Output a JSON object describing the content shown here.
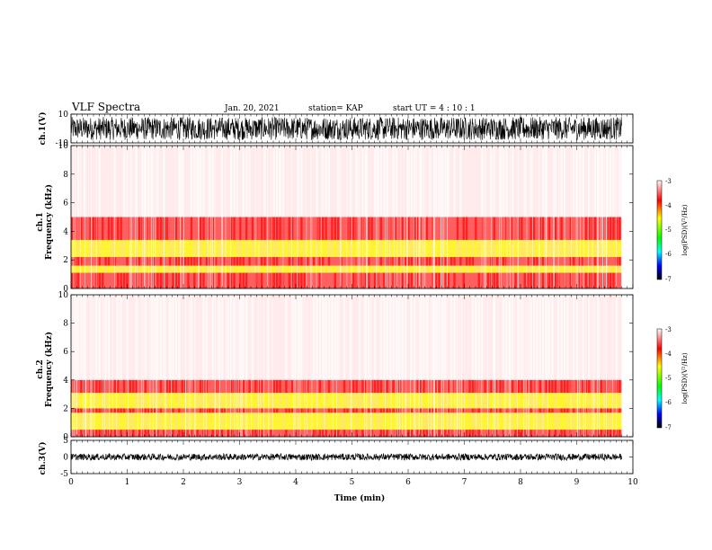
{
  "header": {
    "title": "VLF Spectra",
    "date": "Jan. 20, 2021",
    "station": "station= KAP",
    "start": "start  UT =   4 : 10 : 1"
  },
  "chart_data": [
    {
      "type": "line",
      "panel": "ch1-waveform",
      "ylabel": "ch.1(V)",
      "ylim": [
        -10,
        10
      ],
      "yticks": [
        "10",
        "-10"
      ],
      "description_values": {
        "amplitude_range": [
          -8,
          8
        ]
      }
    },
    {
      "type": "heatmap",
      "panel": "ch1-spectrogram",
      "ylabel": "ch.1\nFrequency  (kHz)",
      "ylabel_lines": [
        "ch.1",
        "Frequency  (kHz)"
      ],
      "ylim": [
        0,
        10
      ],
      "yticks": [
        "0",
        "2",
        "4",
        "6",
        "8",
        "10"
      ],
      "bands": [
        {
          "f_range": [
            0,
            1.1
          ],
          "level": -3.9
        },
        {
          "f_range": [
            1.1,
            1.6
          ],
          "level": -4.2
        },
        {
          "f_range": [
            1.6,
            2.2
          ],
          "level": -3.8
        },
        {
          "f_range": [
            2.2,
            3.4
          ],
          "level": -4.4
        },
        {
          "f_range": [
            3.4,
            5.0
          ],
          "level": -3.9
        },
        {
          "f_range": [
            5.0,
            10.0
          ],
          "level": -3.2
        }
      ],
      "colorbar": {
        "label": "log(PSD)(V²/Hz)",
        "range": [
          -7,
          -3
        ],
        "ticks": [
          "-3",
          "-4",
          "-5",
          "-6",
          "-7"
        ],
        "colors": [
          "#ffffff",
          "#ff0000",
          "#ffff00",
          "#00ff00",
          "#00ffff",
          "#0000ff",
          "#000000"
        ]
      }
    },
    {
      "type": "heatmap",
      "panel": "ch2-spectrogram",
      "ylabel": "ch.2\nFrequency  (kHz)",
      "ylabel_lines": [
        "ch.2",
        "Frequency  (kHz)"
      ],
      "ylim": [
        0,
        10
      ],
      "yticks": [
        "0",
        "2",
        "4",
        "6",
        "8",
        "10"
      ],
      "bands": [
        {
          "f_range": [
            0,
            0.5
          ],
          "level": -3.9
        },
        {
          "f_range": [
            0.5,
            1.7
          ],
          "level": -4.8
        },
        {
          "f_range": [
            1.7,
            2.0
          ],
          "level": -3.9
        },
        {
          "f_range": [
            2.0,
            3.1
          ],
          "level": -4.6
        },
        {
          "f_range": [
            3.1,
            4.0
          ],
          "level": -3.8
        },
        {
          "f_range": [
            4.0,
            10.0
          ],
          "level": -3.2
        }
      ],
      "colorbar": {
        "label": "log(PSD)(V²/Hz)",
        "range": [
          -7,
          -3
        ],
        "ticks": [
          "-3",
          "-4",
          "-5",
          "-6",
          "-7"
        ],
        "colors": [
          "#ffffff",
          "#ff0000",
          "#ffff00",
          "#00ff00",
          "#00ffff",
          "#0000ff",
          "#000000"
        ]
      }
    },
    {
      "type": "line",
      "panel": "ch3-waveform",
      "ylabel": "ch.3(V)",
      "ylim": [
        -5,
        5
      ],
      "yticks": [
        "5",
        "0",
        "-5"
      ],
      "description_values": {
        "amplitude_range": [
          -1,
          1
        ]
      }
    }
  ],
  "xaxis": {
    "label": "Time  (min)",
    "range": [
      0,
      10
    ],
    "data_end": 9.8,
    "ticks": [
      "0",
      "1",
      "2",
      "3",
      "4",
      "5",
      "6",
      "7",
      "8",
      "9",
      "10"
    ]
  }
}
